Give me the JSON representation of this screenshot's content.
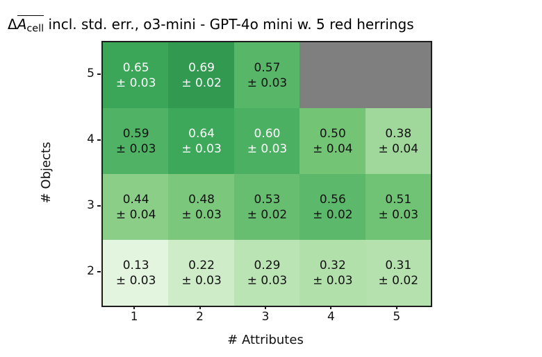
{
  "figure": {
    "title_parts": {
      "delta": "Δ",
      "var": "A",
      "var_subscript": "cell",
      "rest": " incl. std. err., o3-mini - GPT-4o mini w. 5 red herrings"
    }
  },
  "chart_data": {
    "type": "heatmap",
    "title": "ΔA̅cell incl. std. err., o3-mini - GPT-4o mini w. 5 red herrings",
    "xlabel": "# Attributes",
    "ylabel": "# Objects",
    "x_tick_labels": [
      "1",
      "2",
      "3",
      "4",
      "5"
    ],
    "y_tick_labels": [
      "5",
      "4",
      "3",
      "2"
    ],
    "colormap": "Greens",
    "vmin": 0,
    "vmax": 1,
    "grid_on": false,
    "missing_color": "#7f7f7f",
    "text_color_light": "#ffffff",
    "text_color_dark": "#111111",
    "rows": [
      {
        "objects": 5,
        "cells": [
          {
            "value": 0.65,
            "stderr": 0.03,
            "label": "0.65",
            "err_label": "± 0.03",
            "bg": "#3ba558",
            "fg": "#ffffff"
          },
          {
            "value": 0.69,
            "stderr": 0.02,
            "label": "0.69",
            "err_label": "± 0.02",
            "bg": "#319a50",
            "fg": "#ffffff"
          },
          {
            "value": 0.57,
            "stderr": 0.03,
            "label": "0.57",
            "err_label": "± 0.03",
            "bg": "#57b668",
            "fg": "#111111"
          },
          {
            "missing": true,
            "bg": "#7f7f7f"
          },
          {
            "missing": true,
            "bg": "#7f7f7f"
          }
        ]
      },
      {
        "objects": 4,
        "cells": [
          {
            "value": 0.59,
            "stderr": 0.03,
            "label": "0.59",
            "err_label": "± 0.03",
            "bg": "#4fb264",
            "fg": "#111111"
          },
          {
            "value": 0.64,
            "stderr": 0.03,
            "label": "0.64",
            "err_label": "± 0.03",
            "bg": "#3da75a",
            "fg": "#ffffff"
          },
          {
            "value": 0.6,
            "stderr": 0.03,
            "label": "0.60",
            "err_label": "± 0.03",
            "bg": "#4bb062",
            "fg": "#ffffff"
          },
          {
            "value": 0.5,
            "stderr": 0.04,
            "label": "0.50",
            "err_label": "± 0.04",
            "bg": "#74c476",
            "fg": "#111111"
          },
          {
            "value": 0.38,
            "stderr": 0.04,
            "label": "0.38",
            "err_label": "± 0.04",
            "bg": "#9fd89a",
            "fg": "#111111"
          }
        ]
      },
      {
        "objects": 3,
        "cells": [
          {
            "value": 0.44,
            "stderr": 0.04,
            "label": "0.44",
            "err_label": "± 0.04",
            "bg": "#8ace88",
            "fg": "#111111"
          },
          {
            "value": 0.48,
            "stderr": 0.03,
            "label": "0.48",
            "err_label": "± 0.03",
            "bg": "#7bc77c",
            "fg": "#111111"
          },
          {
            "value": 0.53,
            "stderr": 0.02,
            "label": "0.53",
            "err_label": "± 0.02",
            "bg": "#68be70",
            "fg": "#111111"
          },
          {
            "value": 0.56,
            "stderr": 0.02,
            "label": "0.56",
            "err_label": "± 0.02",
            "bg": "#5cb86a",
            "fg": "#111111"
          },
          {
            "value": 0.51,
            "stderr": 0.03,
            "label": "0.51",
            "err_label": "± 0.03",
            "bg": "#70c274",
            "fg": "#111111"
          }
        ]
      },
      {
        "objects": 2,
        "cells": [
          {
            "value": 0.13,
            "stderr": 0.03,
            "label": "0.13",
            "err_label": "± 0.03",
            "bg": "#e4f5df",
            "fg": "#111111"
          },
          {
            "value": 0.22,
            "stderr": 0.03,
            "label": "0.22",
            "err_label": "± 0.03",
            "bg": "#ceecc8",
            "fg": "#111111"
          },
          {
            "value": 0.29,
            "stderr": 0.03,
            "label": "0.29",
            "err_label": "± 0.03",
            "bg": "#bbe4b4",
            "fg": "#111111"
          },
          {
            "value": 0.32,
            "stderr": 0.03,
            "label": "0.32",
            "err_label": "± 0.03",
            "bg": "#b2e0ab",
            "fg": "#111111"
          },
          {
            "value": 0.31,
            "stderr": 0.02,
            "label": "0.31",
            "err_label": "± 0.02",
            "bg": "#b5e1ae",
            "fg": "#111111"
          }
        ]
      }
    ]
  }
}
